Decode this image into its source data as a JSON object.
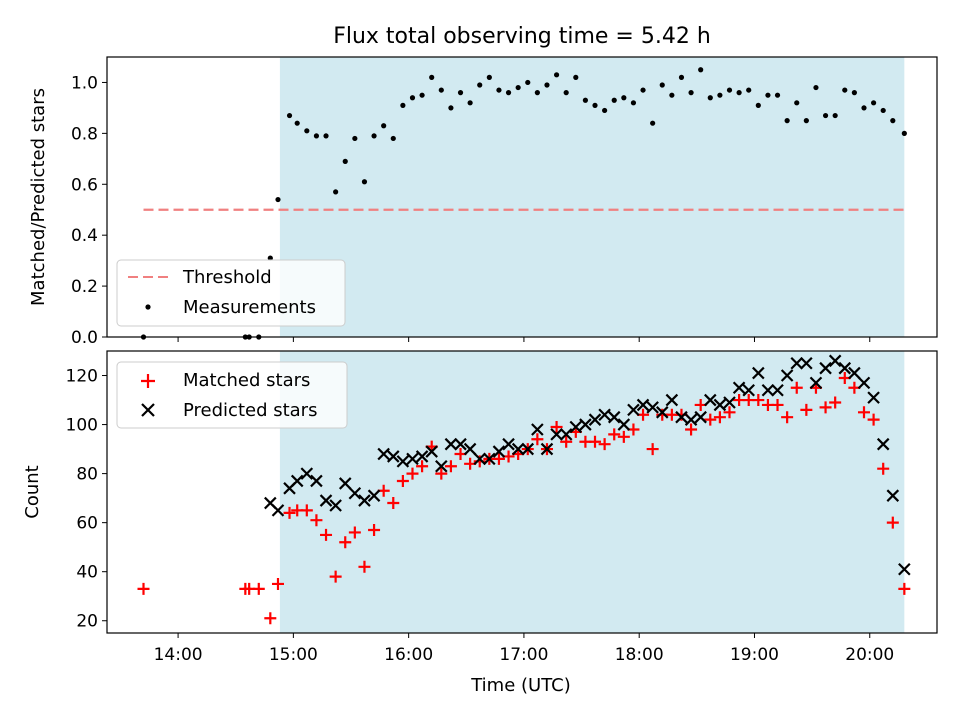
{
  "title": "Flux total observing time = 5.42 h",
  "colors": {
    "shade": "#add8e6",
    "threshold": "#f08080",
    "measurements": "#000000",
    "matched": "#ff0000",
    "predicted": "#000000"
  },
  "chart_data": [
    {
      "type": "scatter",
      "ylabel": "Matched/Predicted stars",
      "xlabel": "",
      "xlim": [
        "13:23",
        "20:35"
      ],
      "ylim": [
        0,
        1.1
      ],
      "yticks": [
        "0.0",
        "0.2",
        "0.4",
        "0.6",
        "0.8",
        "1.0"
      ],
      "grid": false,
      "legend_position": "lower-left",
      "shaded_span": [
        "14:53",
        "20:18"
      ],
      "threshold": {
        "name": "Threshold",
        "value": 0.5,
        "x_range": [
          "13:42",
          "20:18"
        ]
      },
      "series": [
        {
          "name": "Measurements",
          "x": [
            "13:42",
            "14:35",
            "14:37",
            "14:42",
            "14:48",
            "14:52",
            "14:58",
            "15:02",
            "15:07",
            "15:12",
            "15:17",
            "15:22",
            "15:27",
            "15:32",
            "15:37",
            "15:42",
            "15:47",
            "15:52",
            "15:57",
            "16:02",
            "16:07",
            "16:12",
            "16:17",
            "16:22",
            "16:27",
            "16:32",
            "16:37",
            "16:42",
            "16:47",
            "16:52",
            "16:57",
            "17:02",
            "17:07",
            "17:12",
            "17:17",
            "17:22",
            "17:27",
            "17:32",
            "17:37",
            "17:42",
            "17:47",
            "17:52",
            "17:57",
            "18:02",
            "18:07",
            "18:12",
            "18:17",
            "18:22",
            "18:27",
            "18:32",
            "18:37",
            "18:42",
            "18:47",
            "18:52",
            "18:57",
            "19:02",
            "19:07",
            "19:12",
            "19:17",
            "19:22",
            "19:27",
            "19:32",
            "19:37",
            "19:42",
            "19:47",
            "19:52",
            "19:57",
            "20:02",
            "20:07",
            "20:12",
            "20:18"
          ],
          "y": [
            0.0,
            0.0,
            0.0,
            0.0,
            0.31,
            0.54,
            0.87,
            0.84,
            0.81,
            0.79,
            0.79,
            0.57,
            0.69,
            0.78,
            0.61,
            0.79,
            0.83,
            0.78,
            0.91,
            0.94,
            0.95,
            1.02,
            0.97,
            0.9,
            0.96,
            0.92,
            0.99,
            1.02,
            0.97,
            0.96,
            0.98,
            1.0,
            0.96,
            0.99,
            1.03,
            0.96,
            1.02,
            0.93,
            0.91,
            0.89,
            0.93,
            0.94,
            0.92,
            0.97,
            0.84,
            0.99,
            0.95,
            1.02,
            0.96,
            1.05,
            0.94,
            0.95,
            0.97,
            0.96,
            0.97,
            0.91,
            0.95,
            0.95,
            0.85,
            0.92,
            0.85,
            0.98,
            0.87,
            0.87,
            0.97,
            0.96,
            0.9,
            0.92,
            0.89,
            0.85,
            0.8
          ]
        }
      ]
    },
    {
      "type": "scatter",
      "ylabel": "Count",
      "xlabel": "Time (UTC)",
      "xlim": [
        "13:23",
        "20:35"
      ],
      "ylim": [
        15,
        130
      ],
      "yticks": [
        "20",
        "40",
        "60",
        "80",
        "100",
        "120"
      ],
      "xticks": [
        "14:00",
        "15:00",
        "16:00",
        "17:00",
        "18:00",
        "19:00",
        "20:00"
      ],
      "grid": false,
      "legend_position": "top-left",
      "shaded_span": [
        "14:53",
        "20:18"
      ],
      "series": [
        {
          "name": "Matched stars",
          "marker": "+",
          "x": [
            "13:42",
            "14:35",
            "14:37",
            "14:42",
            "14:48",
            "14:52",
            "14:58",
            "15:02",
            "15:07",
            "15:12",
            "15:17",
            "15:22",
            "15:27",
            "15:32",
            "15:37",
            "15:42",
            "15:47",
            "15:52",
            "15:57",
            "16:02",
            "16:07",
            "16:12",
            "16:17",
            "16:22",
            "16:27",
            "16:32",
            "16:37",
            "16:42",
            "16:47",
            "16:52",
            "16:57",
            "17:02",
            "17:07",
            "17:12",
            "17:17",
            "17:22",
            "17:27",
            "17:32",
            "17:37",
            "17:42",
            "17:47",
            "17:52",
            "17:57",
            "18:02",
            "18:07",
            "18:12",
            "18:17",
            "18:22",
            "18:27",
            "18:32",
            "18:37",
            "18:42",
            "18:47",
            "18:52",
            "18:57",
            "19:02",
            "19:07",
            "19:12",
            "19:17",
            "19:22",
            "19:27",
            "19:32",
            "19:37",
            "19:42",
            "19:47",
            "19:52",
            "19:57",
            "20:02",
            "20:07",
            "20:12",
            "20:18"
          ],
          "y": [
            33,
            33,
            33,
            33,
            21,
            35,
            64,
            65,
            65,
            61,
            55,
            38,
            52,
            56,
            42,
            57,
            73,
            68,
            77,
            80,
            83,
            91,
            80,
            83,
            88,
            84,
            85,
            86,
            86,
            87,
            88,
            90,
            94,
            90,
            99,
            93,
            97,
            93,
            93,
            92,
            96,
            95,
            98,
            104,
            90,
            104,
            104,
            104,
            98,
            108,
            102,
            103,
            105,
            110,
            110,
            110,
            108,
            108,
            103,
            115,
            106,
            115,
            107,
            109,
            119,
            115,
            105,
            102,
            82,
            60,
            33
          ]
        },
        {
          "name": "Predicted stars",
          "marker": "x",
          "x": [
            "14:48",
            "14:52",
            "14:58",
            "15:02",
            "15:07",
            "15:12",
            "15:17",
            "15:22",
            "15:27",
            "15:32",
            "15:37",
            "15:42",
            "15:47",
            "15:52",
            "15:57",
            "16:02",
            "16:07",
            "16:12",
            "16:17",
            "16:22",
            "16:27",
            "16:32",
            "16:37",
            "16:42",
            "16:47",
            "16:52",
            "16:57",
            "17:02",
            "17:07",
            "17:12",
            "17:17",
            "17:22",
            "17:27",
            "17:32",
            "17:37",
            "17:42",
            "17:47",
            "17:52",
            "17:57",
            "18:02",
            "18:07",
            "18:12",
            "18:17",
            "18:22",
            "18:27",
            "18:32",
            "18:37",
            "18:42",
            "18:47",
            "18:52",
            "18:57",
            "19:02",
            "19:07",
            "19:12",
            "19:17",
            "19:22",
            "19:27",
            "19:32",
            "19:37",
            "19:42",
            "19:47",
            "19:52",
            "19:57",
            "20:02",
            "20:07",
            "20:12",
            "20:18"
          ],
          "y": [
            68,
            65,
            74,
            77,
            80,
            77,
            69,
            67,
            76,
            72,
            69,
            71,
            88,
            87,
            85,
            86,
            87,
            89,
            83,
            92,
            92,
            90,
            86,
            86,
            89,
            92,
            90,
            90,
            98,
            90,
            96,
            96,
            99,
            100,
            102,
            104,
            103,
            100,
            106,
            108,
            107,
            105,
            110,
            103,
            102,
            103,
            110,
            108,
            109,
            115,
            114,
            121,
            114,
            114,
            120,
            125,
            125,
            117,
            123,
            126,
            123,
            121,
            117,
            111,
            92,
            71,
            41
          ]
        }
      ]
    }
  ]
}
